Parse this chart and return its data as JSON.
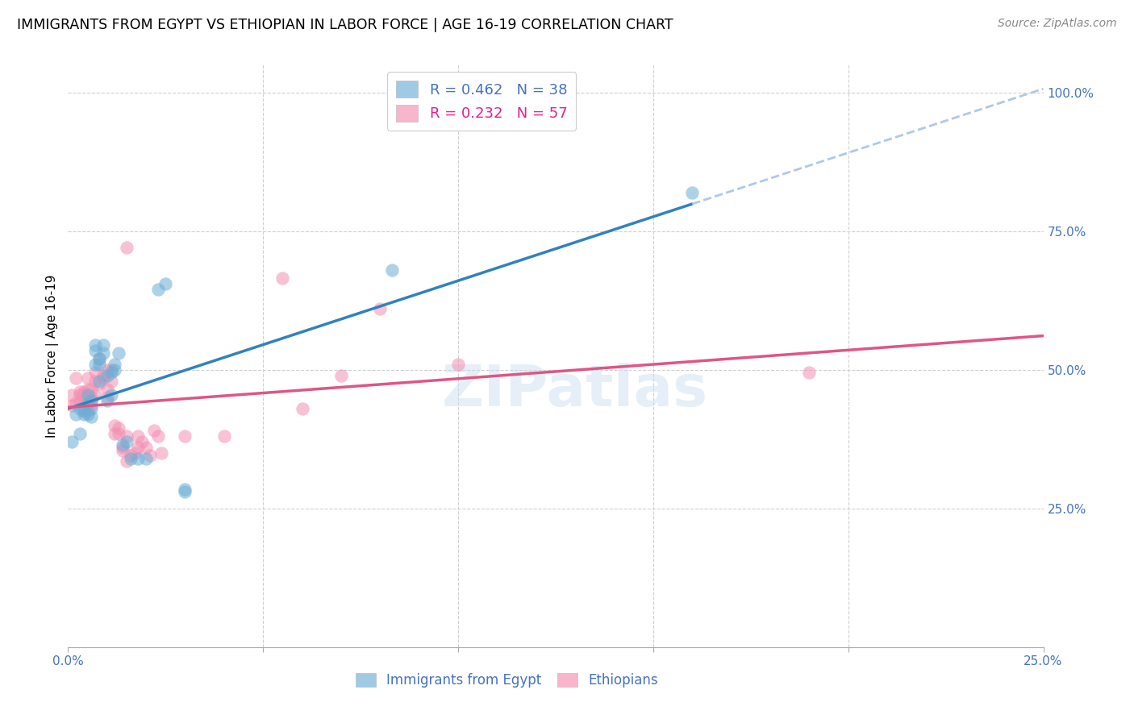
{
  "title": "IMMIGRANTS FROM EGYPT VS ETHIOPIAN IN LABOR FORCE | AGE 16-19 CORRELATION CHART",
  "source": "Source: ZipAtlas.com",
  "ylabel": "In Labor Force | Age 16-19",
  "xlim": [
    0.0,
    0.25
  ],
  "ylim": [
    0.0,
    1.05
  ],
  "egypt_R": 0.462,
  "egypt_N": 38,
  "ethiopian_R": 0.232,
  "ethiopian_N": 57,
  "egypt_color": "#6baed6",
  "ethiopian_color": "#f48fb1",
  "egypt_line_color": "#3182bd",
  "ethiopian_line_color": "#e05585",
  "dashed_line_color": "#aec8e8",
  "watermark": "ZIPatlas",
  "egypt_points_x": [
    0.001,
    0.002,
    0.003,
    0.003,
    0.004,
    0.004,
    0.005,
    0.005,
    0.005,
    0.006,
    0.006,
    0.006,
    0.007,
    0.007,
    0.007,
    0.008,
    0.008,
    0.008,
    0.009,
    0.009,
    0.01,
    0.01,
    0.011,
    0.011,
    0.012,
    0.012,
    0.013,
    0.014,
    0.015,
    0.016,
    0.018,
    0.02,
    0.023,
    0.025,
    0.03,
    0.03,
    0.083,
    0.16
  ],
  "egypt_points_y": [
    0.37,
    0.42,
    0.43,
    0.385,
    0.43,
    0.42,
    0.455,
    0.44,
    0.42,
    0.445,
    0.43,
    0.415,
    0.545,
    0.535,
    0.51,
    0.52,
    0.51,
    0.48,
    0.545,
    0.53,
    0.49,
    0.445,
    0.495,
    0.455,
    0.51,
    0.5,
    0.53,
    0.365,
    0.37,
    0.34,
    0.34,
    0.34,
    0.645,
    0.655,
    0.28,
    0.285,
    0.68,
    0.82
  ],
  "ethiopian_points_x": [
    0.001,
    0.001,
    0.002,
    0.002,
    0.003,
    0.003,
    0.003,
    0.004,
    0.004,
    0.004,
    0.004,
    0.005,
    0.005,
    0.005,
    0.006,
    0.006,
    0.006,
    0.006,
    0.007,
    0.007,
    0.007,
    0.008,
    0.008,
    0.009,
    0.009,
    0.01,
    0.01,
    0.01,
    0.011,
    0.011,
    0.012,
    0.012,
    0.013,
    0.013,
    0.014,
    0.014,
    0.015,
    0.015,
    0.015,
    0.016,
    0.017,
    0.018,
    0.018,
    0.019,
    0.02,
    0.021,
    0.022,
    0.023,
    0.024,
    0.03,
    0.04,
    0.055,
    0.06,
    0.07,
    0.08,
    0.1,
    0.19
  ],
  "ethiopian_points_y": [
    0.435,
    0.455,
    0.44,
    0.485,
    0.44,
    0.46,
    0.455,
    0.425,
    0.445,
    0.455,
    0.46,
    0.425,
    0.465,
    0.485,
    0.445,
    0.435,
    0.45,
    0.465,
    0.455,
    0.495,
    0.48,
    0.475,
    0.52,
    0.485,
    0.49,
    0.45,
    0.465,
    0.5,
    0.48,
    0.5,
    0.385,
    0.4,
    0.385,
    0.395,
    0.355,
    0.36,
    0.335,
    0.38,
    0.72,
    0.345,
    0.35,
    0.36,
    0.38,
    0.37,
    0.36,
    0.345,
    0.39,
    0.38,
    0.35,
    0.38,
    0.38,
    0.665,
    0.43,
    0.49,
    0.61,
    0.51,
    0.495
  ]
}
